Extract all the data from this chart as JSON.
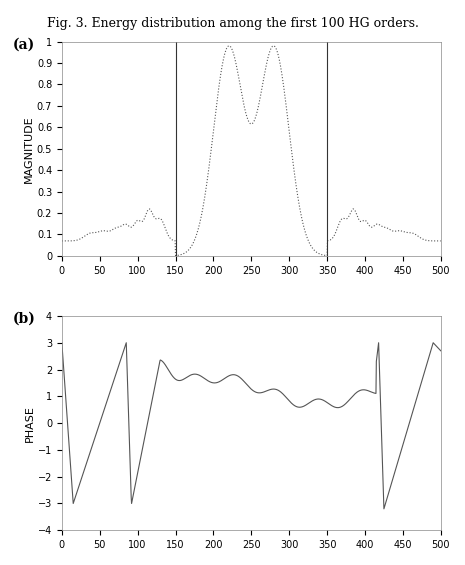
{
  "title": "Fig. 3. Energy distribution among the first 100 HG orders.",
  "title_fontsize": 9,
  "n_points": 1001,
  "x_min": 0,
  "x_max": 500,
  "vline1": 150,
  "vline2": 350,
  "mag_ylabel": "MAGNITUDE",
  "phase_ylabel": "PHASE",
  "mag_ylim": [
    0,
    1
  ],
  "phase_ylim": [
    -4,
    4
  ],
  "mag_yticks": [
    0,
    0.1,
    0.2,
    0.3,
    0.4,
    0.5,
    0.6,
    0.7,
    0.8,
    0.9,
    1
  ],
  "phase_yticks": [
    -4,
    -3,
    -2,
    -1,
    0,
    1,
    2,
    3,
    4
  ],
  "xticks": [
    0,
    50,
    100,
    150,
    200,
    250,
    300,
    350,
    400,
    450,
    500
  ],
  "label_a": "(a)",
  "label_b": "(b)",
  "line_color": "#555555",
  "vline_color": "#333333",
  "bg_color": "#ffffff",
  "fig_width": 4.65,
  "fig_height": 5.65,
  "dpi": 100
}
